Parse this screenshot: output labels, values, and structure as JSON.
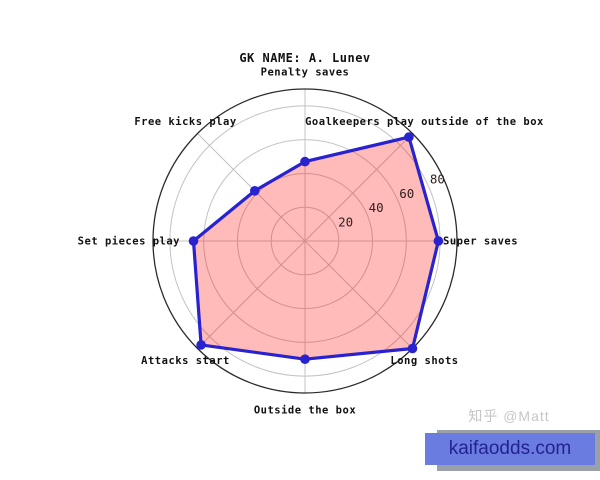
{
  "header": {
    "title": "GK NAME: A. Lunev"
  },
  "chart_data": {
    "type": "radar",
    "title": "GK NAME: A. Lunev",
    "categories": [
      "Super saves",
      "Goalkeepers play outside of the box",
      "Penalty saves",
      "Free kicks play",
      "Set pieces play",
      "Attacks start",
      "Outside the box",
      "Long shots"
    ],
    "values": [
      79,
      87,
      47,
      42,
      66,
      87,
      70,
      90
    ],
    "angles_deg": [
      0,
      45,
      90,
      135,
      180,
      225,
      270,
      315
    ],
    "r_ticks": [
      20,
      40,
      60,
      80
    ],
    "r_tick_labels": [
      "20",
      "40",
      "60",
      "80"
    ],
    "r_max": 90,
    "grid": true,
    "legend": "none",
    "colors": {
      "line": "#2822cf",
      "fill_rgba": "rgba(255,0,0,0.27)",
      "grid": "#c3c3c3",
      "outer_ring": "#2b2b2b",
      "tick_label": "#332020",
      "axis_label": "#111111"
    }
  },
  "watermark": {
    "credit": "知乎 @Matt",
    "site": "kaifaodds.com",
    "banner_bg": "#6b7ce0",
    "banner_shadow": "#9aa0a9",
    "banner_text_color": "#23238f"
  }
}
